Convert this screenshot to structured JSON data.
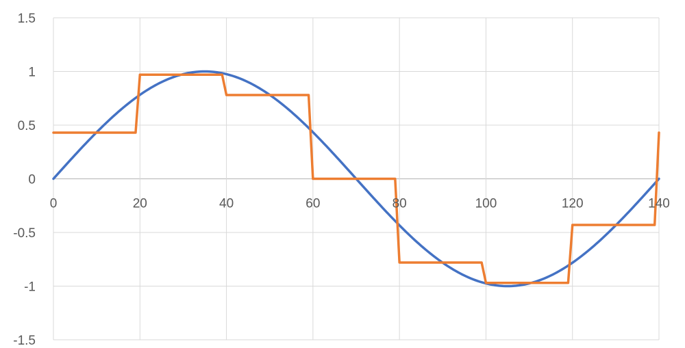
{
  "chart_data": {
    "type": "line",
    "title": "",
    "xlabel": "",
    "ylabel": "",
    "xlim": [
      0,
      140
    ],
    "ylim": [
      -1.5,
      1.5
    ],
    "x_ticks": [
      "0",
      "20",
      "40",
      "60",
      "80",
      "100",
      "120",
      "140"
    ],
    "y_ticks": [
      "1.5",
      "1",
      "0.5",
      "0",
      "-0.5",
      "-1",
      "-1.5"
    ],
    "grid": true,
    "legend": "none",
    "series": [
      {
        "color": "#4472C4",
        "function": "sin(2*pi*x/140)",
        "x_range": [
          0,
          140
        ]
      },
      {
        "color": "#ED7D31",
        "x": [
          0,
          19,
          20,
          39,
          40,
          59,
          60,
          79,
          80,
          99,
          100,
          119,
          120,
          139,
          140
        ],
        "y": [
          0.43,
          0.43,
          0.97,
          0.97,
          0.78,
          0.78,
          0.0,
          0.0,
          -0.78,
          -0.78,
          -0.97,
          -0.97,
          -0.43,
          -0.43,
          0.43
        ]
      }
    ]
  }
}
